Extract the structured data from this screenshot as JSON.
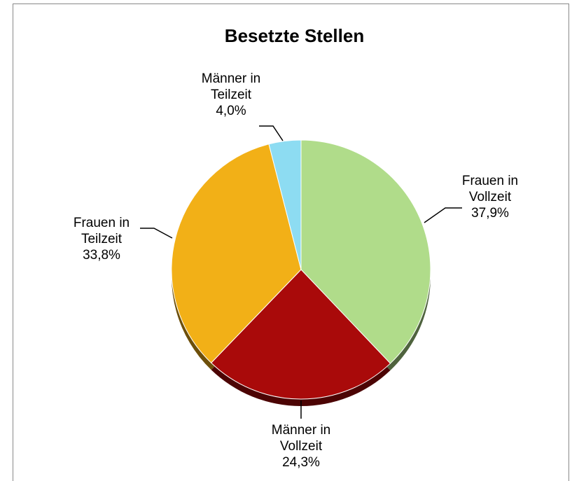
{
  "chart_data": {
    "type": "pie",
    "title": "Besetzte Stellen",
    "categories": [
      "Frauen in Vollzeit",
      "Männer in Vollzeit",
      "Frauen in Teilzeit",
      "Männer in Teilzeit"
    ],
    "values": [
      37.9,
      24.3,
      33.8,
      4.0
    ],
    "value_labels": [
      "37,9%",
      "24,3%",
      "33,8%",
      "4,0%"
    ],
    "colors": [
      "#b0dc8a",
      "#a90a0a",
      "#f2b017",
      "#8ddcf2"
    ]
  }
}
